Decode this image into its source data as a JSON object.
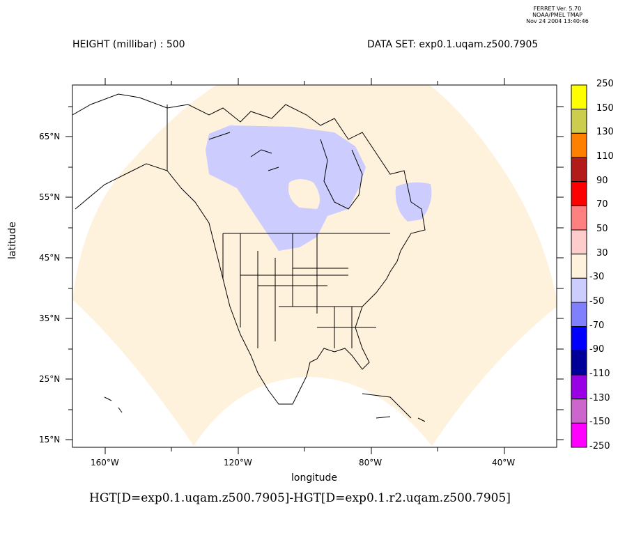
{
  "stamp": {
    "line1": "FERRET Ver. 5.70",
    "line2": "NOAA/PMEL TMAP",
    "line3": "Nov 24 2004 13:40:46"
  },
  "header": {
    "left": "HEIGHT (millibar) : 500",
    "right": "DATA SET: exp0.1.uqam.z500.7905"
  },
  "axes": {
    "xlabel": "longitude",
    "ylabel": "latitude",
    "xticks": [
      "160°W",
      "120°W",
      "80°W",
      "40°W"
    ],
    "yticks": [
      "65°N",
      "55°N",
      "45°N",
      "35°N",
      "25°N",
      "15°N"
    ]
  },
  "title": "HGT[D=exp0.1.uqam.z500.7905]-HGT[D=exp0.1.r2.uqam.z500.7905]",
  "colorbar": {
    "labels": [
      "250",
      "150",
      "130",
      "110",
      "90",
      "70",
      "50",
      "30",
      "-30",
      "-50",
      "-70",
      "-90",
      "-110",
      "-130",
      "-150",
      "-250"
    ],
    "colors": [
      "#ffff00",
      "#cccc4d",
      "#ff8000",
      "#b31a1a",
      "#ff0000",
      "#ff8080",
      "#ffcccc",
      "#fff2dd",
      "#ccccff",
      "#8080ff",
      "#0000ff",
      "#000099",
      "#9900e6",
      "#cc66cc",
      "#ff00ff"
    ]
  },
  "chart_data": {
    "type": "heatmap",
    "title": "HGT[D=exp0.1.uqam.z500.7905]-HGT[D=exp0.1.r2.uqam.z500.7905]",
    "xlabel": "longitude",
    "ylabel": "latitude",
    "xlim": [
      -170,
      -25
    ],
    "ylim": [
      13.7,
      73.5
    ],
    "levels": [
      -250,
      -150,
      -130,
      -110,
      -90,
      -70,
      -50,
      -30,
      30,
      50,
      70,
      90,
      110,
      130,
      150,
      250
    ],
    "dominant_range": [
      -30,
      30
    ],
    "regions_below_minus30": [
      "central/northern Canada around Hudson Bay",
      "Labrador"
    ]
  }
}
